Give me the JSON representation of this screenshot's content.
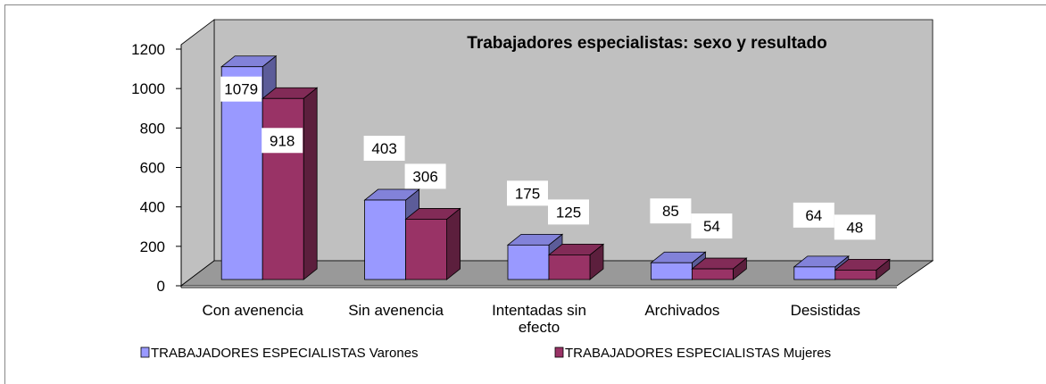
{
  "chart_data": {
    "type": "bar",
    "title": "Trabajadores especialistas: sexo y resultado",
    "categories": [
      "Con avenencia",
      "Sin avenencia",
      "Intentadas sin efecto",
      "Archivados",
      "Desistidas"
    ],
    "series": [
      {
        "name": "TRABAJADORES ESPECIALISTAS Varones",
        "color": "#9999ff",
        "values": [
          1079,
          403,
          175,
          85,
          64
        ]
      },
      {
        "name": "TRABAJADORES ESPECIALISTAS Mujeres",
        "color": "#993366",
        "values": [
          918,
          306,
          125,
          54,
          48
        ]
      }
    ],
    "ylim": [
      0,
      1200
    ],
    "yticks": [
      0,
      200,
      400,
      600,
      800,
      1000,
      1200
    ]
  }
}
